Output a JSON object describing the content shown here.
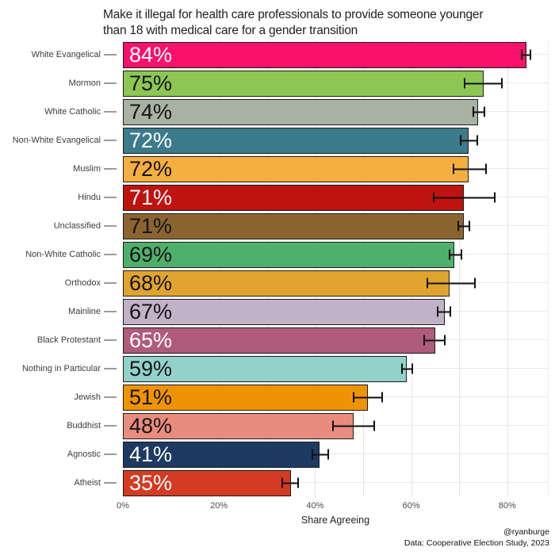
{
  "title": "Make it illegal for health care professionals to provide someone younger\nthan 18 with medical care for a gender transition",
  "xlabel": "Share Agreeing",
  "caption": {
    "handle": "@ryanburge",
    "source": "Data: Cooperative Election Study, 2023"
  },
  "colors": {
    "background": "#ffffff",
    "bar_outline": "#1a1a1a",
    "grid_vertical": "#e4e4e4",
    "grid_horizontal": "#e9e9e9",
    "error_bar": "#111111",
    "title_text": "#202020",
    "category_text": "#3c3c3c",
    "axis_text": "#4c4c4c",
    "category_tick": "#9b9b9b"
  },
  "chart_data": {
    "type": "bar",
    "orientation": "horizontal",
    "title": "Make it illegal for health care professionals to provide someone younger than 18 with medical care for a gender transition",
    "xlabel": "Share Agreeing",
    "x_ticks": [
      "0%",
      "20%",
      "40%",
      "60%",
      "80%"
    ],
    "x_tick_values": [
      0,
      20,
      40,
      60,
      80
    ],
    "xlim": [
      0,
      88.4
    ],
    "grid": "vertical gridlines every 10%, horizontal gridline at each category center",
    "legend": "none",
    "categories": [
      "White Evangelical",
      "Mormon",
      "White Catholic",
      "Non-White Evangelical",
      "Muslim",
      "Hindu",
      "Unclassified",
      "Non-White Catholic",
      "Orthodox",
      "Mainline",
      "Black Protestant",
      "Nothing in Particular",
      "Jewish",
      "Buddhist",
      "Agnostic",
      "Atheist"
    ],
    "values": [
      84,
      75,
      74,
      72,
      72,
      71,
      71,
      69,
      68,
      67,
      65,
      59,
      51,
      48,
      41,
      35
    ],
    "value_labels": [
      "84%",
      "75%",
      "74%",
      "72%",
      "72%",
      "71%",
      "71%",
      "69%",
      "68%",
      "67%",
      "65%",
      "59%",
      "51%",
      "48%",
      "41%",
      "35%"
    ],
    "error_low": [
      82.8,
      71.0,
      72.8,
      70.1,
      68.7,
      64.6,
      69.7,
      67.8,
      63.2,
      65.4,
      62.6,
      58.0,
      47.9,
      43.5,
      39.3,
      33.0
    ],
    "error_high": [
      85.0,
      79.0,
      75.4,
      73.9,
      75.7,
      77.6,
      72.3,
      70.6,
      73.4,
      68.4,
      67.2,
      60.4,
      54.1,
      52.5,
      42.9,
      36.6
    ],
    "bar_colors": [
      "#f9116b",
      "#8dc653",
      "#a9b1a2",
      "#3c7b8c",
      "#f4af3f",
      "#bf1310",
      "#8b652f",
      "#4fb06c",
      "#e0a42e",
      "#c2b2c7",
      "#af5b7b",
      "#92d2cb",
      "#f09303",
      "#e98b7e",
      "#1d3a63",
      "#d33b23"
    ],
    "value_label_colors": [
      "#ffffff",
      "#141414",
      "#141414",
      "#ffffff",
      "#141414",
      "#ffffff",
      "#141414",
      "#141414",
      "#141414",
      "#141414",
      "#ffffff",
      "#141414",
      "#141414",
      "#141414",
      "#ffffff",
      "#ffffff"
    ]
  }
}
